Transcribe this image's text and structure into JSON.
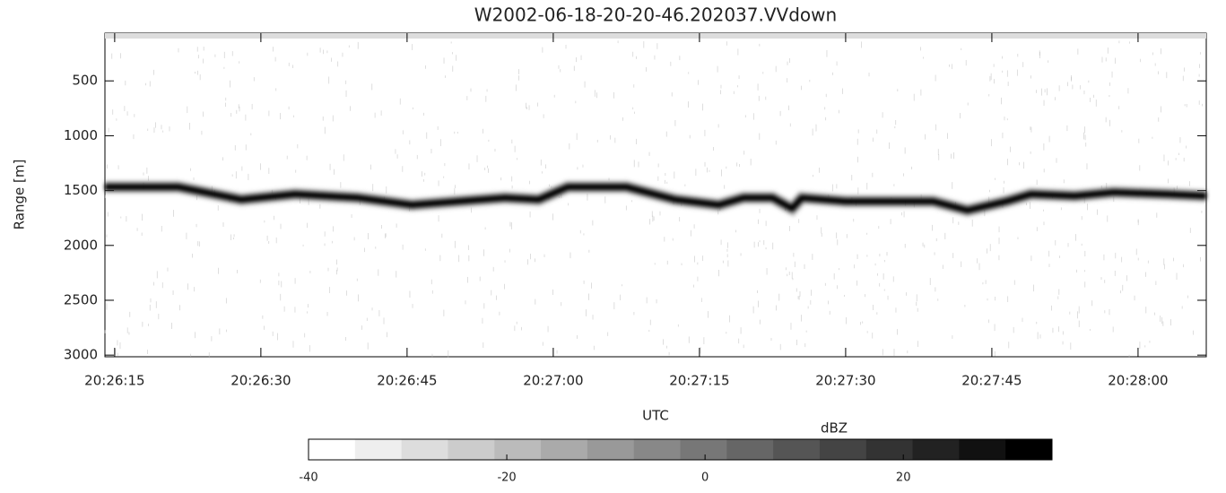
{
  "chart_data": {
    "type": "line",
    "title": "W2002-06-18-20-20-46.202037.VVdown",
    "x_label": "UTC",
    "y_label": "Range [m]",
    "series": [
      {
        "name": null,
        "color": "#000000",
        "x": [
          73574,
          73581.5,
          73588,
          73593.5,
          73600,
          73605.5,
          73615,
          73618.5,
          73621.5,
          73627.5,
          73632.5,
          73637,
          73639.5,
          73642.5,
          73644.5,
          73645.5,
          73650,
          73655.5,
          73659,
          73662.5,
          73666.5,
          73669,
          73673.5,
          73677.5,
          73683,
          73687
        ],
        "values": [
          1467,
          1467,
          1582,
          1533,
          1566,
          1631,
          1566,
          1582,
          1467,
          1467,
          1582,
          1631,
          1566,
          1566,
          1664,
          1566,
          1598,
          1598,
          1598,
          1680,
          1598,
          1533,
          1549,
          1516,
          1533,
          1549
        ]
      }
    ],
    "xlim": [
      73574,
      73687
    ],
    "xticks": [
      {
        "value": 73575,
        "label": "20:26:15"
      },
      {
        "value": 73590,
        "label": "20:26:30"
      },
      {
        "value": 73605,
        "label": "20:26:45"
      },
      {
        "value": 73620,
        "label": "20:27:00"
      },
      {
        "value": 73635,
        "label": "20:27:15"
      },
      {
        "value": 73650,
        "label": "20:27:30"
      },
      {
        "value": 73665,
        "label": "20:27:45"
      },
      {
        "value": 73680,
        "label": "20:28:00"
      }
    ],
    "ylim": [
      3015,
      65
    ],
    "yticks": [
      500,
      1000,
      1500,
      2000,
      2500,
      3000
    ],
    "colorbar": {
      "label": "dBZ",
      "clim": [
        -40,
        35
      ],
      "levels": 16,
      "ticks": [
        -40,
        -20,
        0,
        20
      ]
    }
  }
}
